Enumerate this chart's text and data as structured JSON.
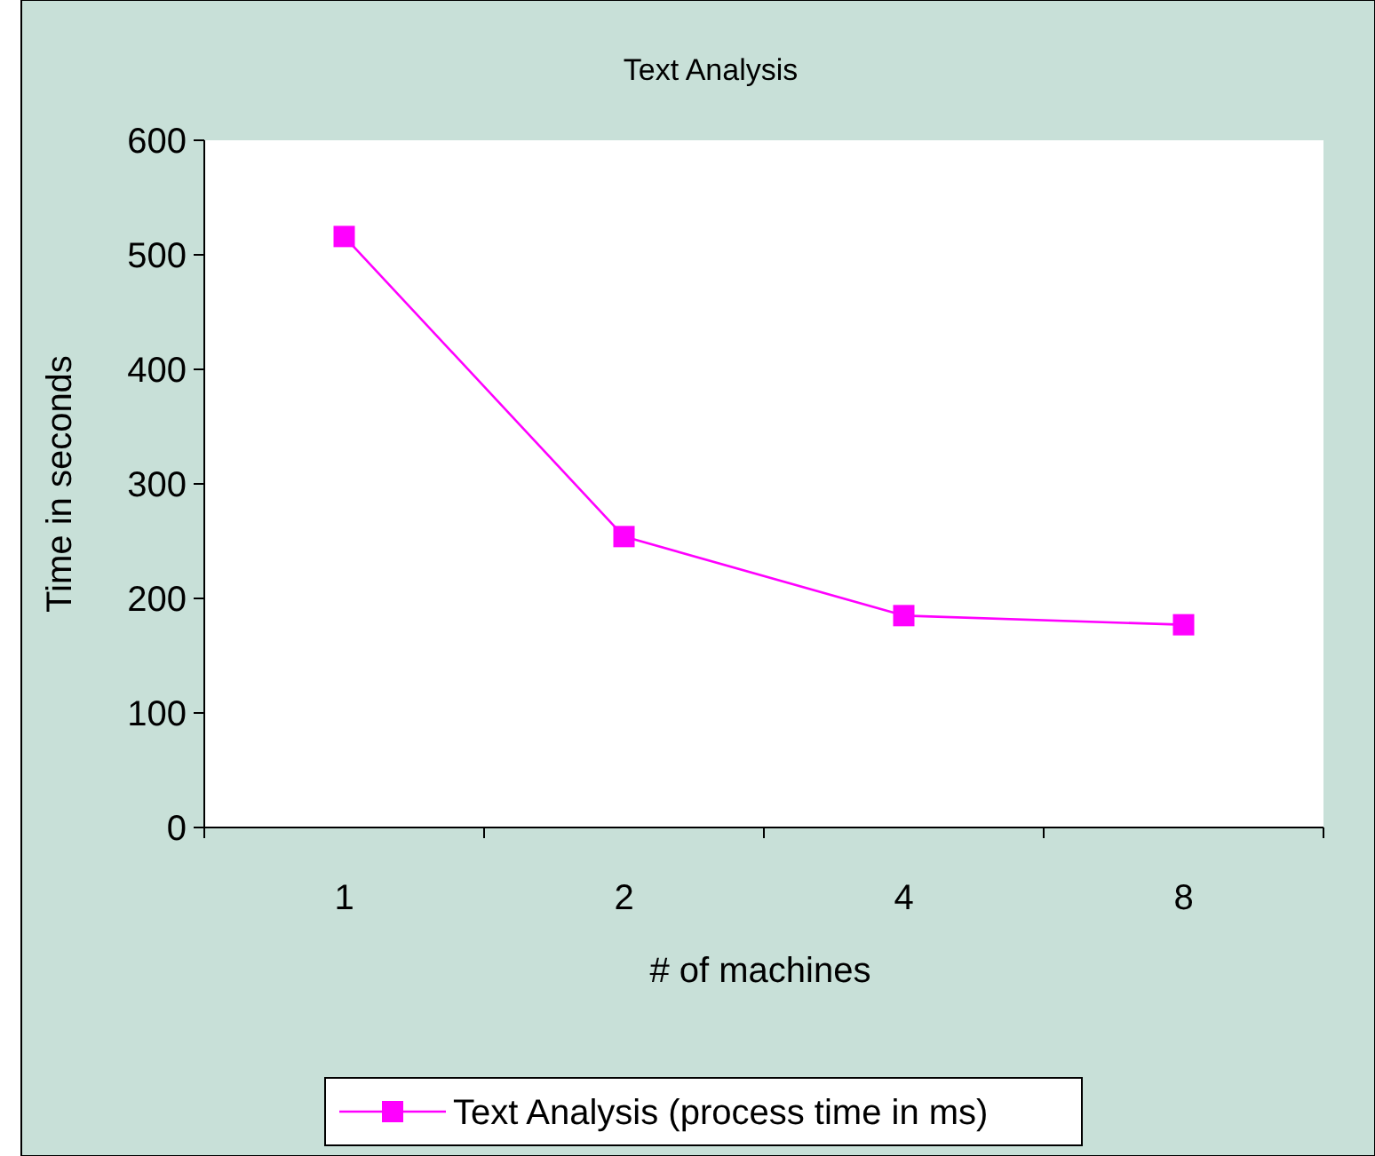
{
  "chart_data": {
    "type": "line",
    "title": "Text Analysis",
    "xlabel": "# of machines",
    "ylabel": "Time in seconds",
    "categories": [
      "1",
      "2",
      "4",
      "8"
    ],
    "series": [
      {
        "name": "Text Analysis (process time in ms)",
        "color": "#ff00ff",
        "values": [
          516,
          254,
          185,
          177
        ]
      }
    ],
    "ylim": [
      0,
      600
    ],
    "yticks": [
      0,
      100,
      200,
      300,
      400,
      500,
      600
    ],
    "grid": false,
    "legend": "bottom",
    "marker": "square",
    "line_style": "solid"
  }
}
